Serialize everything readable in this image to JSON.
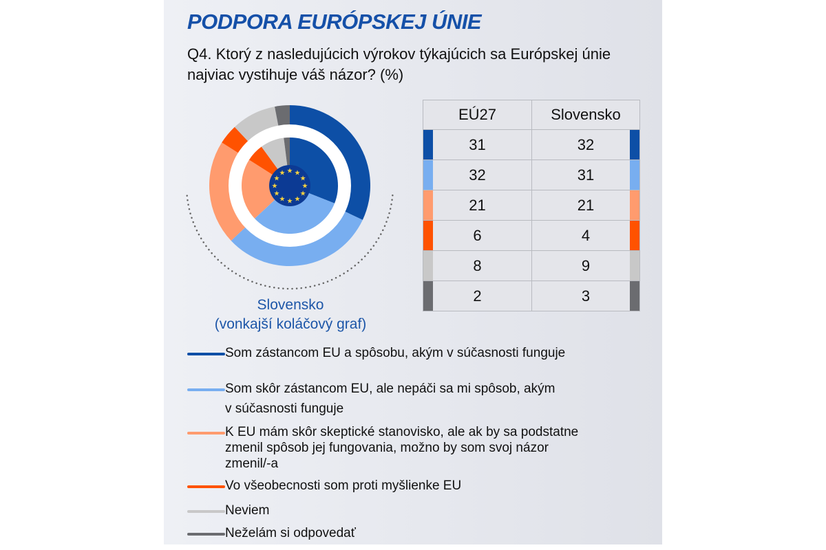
{
  "title": "PODPORA EURÓPSKEJ ÚNIE",
  "question": "Q4. Ktorý z nasledujúcich výrokov týkajúcich sa Európskej únie najviac vystihuje váš názor? (%)",
  "pie_label_line1": "Slovensko",
  "pie_label_line2": "(vonkajší koláčový graf)",
  "chart_data": {
    "type": "pie",
    "note_outer": "Slovensko",
    "categories": [
      "Som zástancom EU a spôsobu, akým v súčasnosti funguje",
      "Som skôr zástancom EU, ale nepáči sa mi spôsob, akým v súčasnosti funguje",
      "K EU mám skôr skeptické stanovisko, ale ak by sa podstatne zmenil spôsob jej fungovania, možno by som svoj názor zmenil/-a",
      "Vo všeobecnosti som proti myšlienke EU",
      "Neviem",
      "Neželám si odpovedať"
    ],
    "colors": [
      "#0d4fa6",
      "#78aef0",
      "#ff9b6e",
      "#ff5200",
      "#c8c8c8",
      "#6b6c70"
    ],
    "series": [
      {
        "name": "EÚ27",
        "ring": "inner",
        "values": [
          31,
          32,
          21,
          6,
          8,
          2
        ]
      },
      {
        "name": "Slovensko",
        "ring": "outer",
        "values": [
          32,
          31,
          21,
          4,
          9,
          3
        ]
      }
    ]
  },
  "table": {
    "headers": [
      "EÚ27",
      "Slovensko"
    ]
  },
  "legend_lines": [
    [
      "Som zástancom EU a spôsobu, akým v súčasnosti funguje"
    ],
    [
      "Som skôr zástancom EU, ale nepáči sa mi spôsob, akým",
      "v súčasnosti funguje"
    ],
    [
      "K EU mám skôr skeptické stanovisko, ale ak by sa podstatne",
      "zmenil spôsob jej fungovania, možno by som svoj názor",
      "zmenil/-a"
    ],
    [
      "Vo všeobecnosti som proti myšlienke EU"
    ],
    [
      "Neviem"
    ],
    [
      "Neželám si odpovedať"
    ]
  ]
}
